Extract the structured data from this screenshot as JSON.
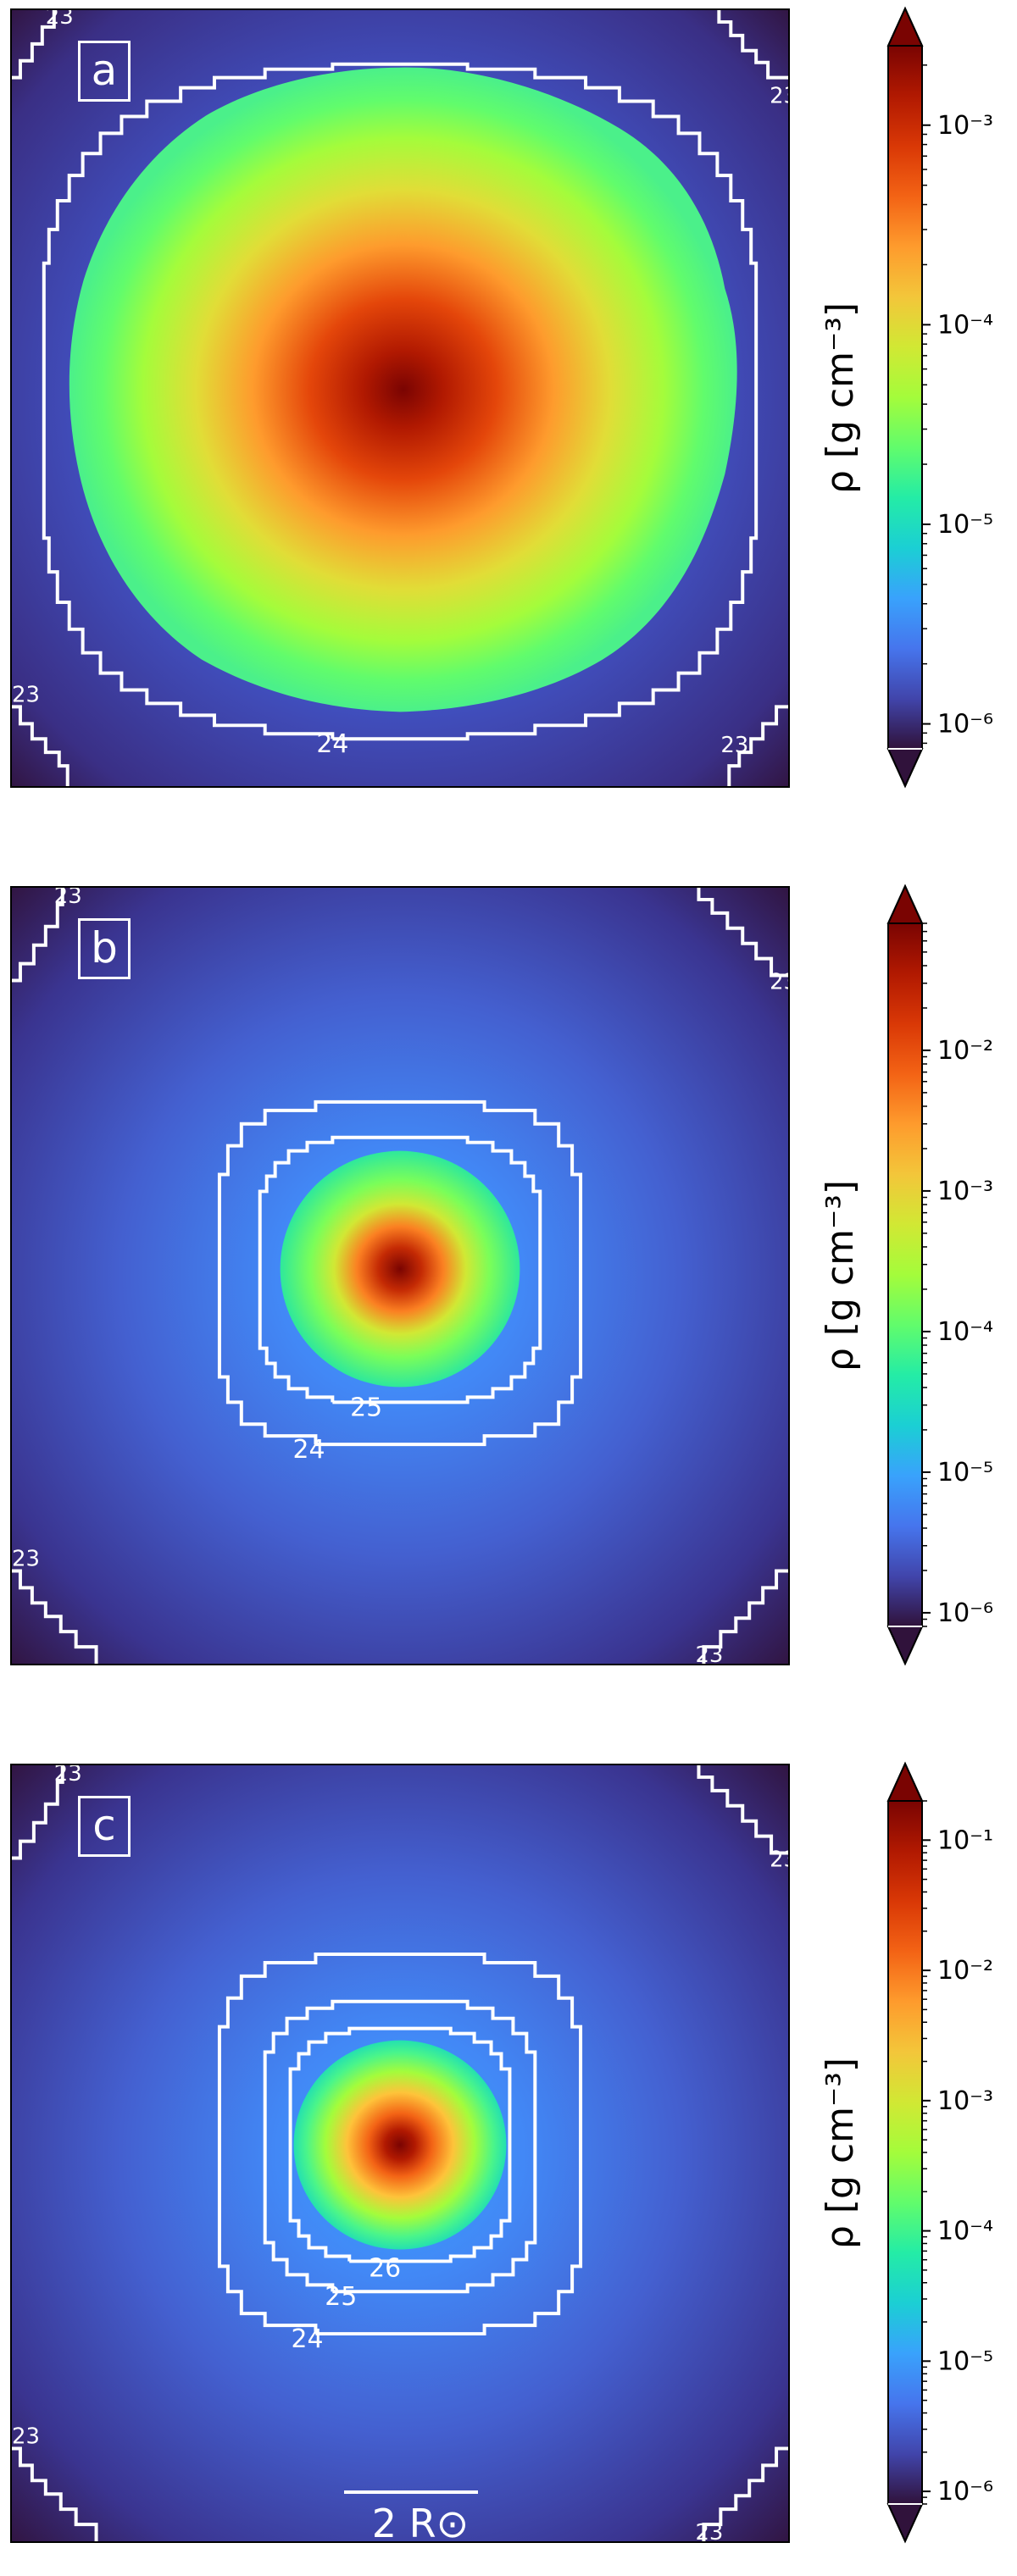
{
  "chart_data": [
    {
      "type": "heatmap",
      "panel_label": "a",
      "quantity": "density",
      "colorbar": {
        "label": "ρ [g cm⁻³]",
        "scale": "log",
        "range": [
          7.5e-07,
          0.0025
        ],
        "ticks": [
          {
            "value": 1e-06,
            "label": "10⁻⁶"
          },
          {
            "value": 1e-05,
            "label": "10⁻⁵"
          },
          {
            "value": 0.0001,
            "label": "10⁻⁴"
          },
          {
            "value": 0.001,
            "label": "10⁻³"
          }
        ],
        "extend": "both"
      },
      "contour_labels": [
        "24",
        "23",
        "23",
        "23",
        "23"
      ],
      "max_density": 0.0025
    },
    {
      "type": "heatmap",
      "panel_label": "b",
      "quantity": "density",
      "colorbar": {
        "label": "ρ [g cm⁻³]",
        "scale": "log",
        "range": [
          8e-07,
          0.08
        ],
        "ticks": [
          {
            "value": 1e-06,
            "label": "10⁻⁶"
          },
          {
            "value": 1e-05,
            "label": "10⁻⁵"
          },
          {
            "value": 0.0001,
            "label": "10⁻⁴"
          },
          {
            "value": 0.001,
            "label": "10⁻³"
          },
          {
            "value": 0.01,
            "label": "10⁻²"
          }
        ],
        "extend": "both"
      },
      "contour_labels": [
        "25",
        "24",
        "23",
        "23",
        "23",
        "23"
      ],
      "max_density": 0.08
    },
    {
      "type": "heatmap",
      "panel_label": "c",
      "quantity": "density",
      "colorbar": {
        "label": "ρ [g cm⁻³]",
        "scale": "log",
        "range": [
          8e-07,
          0.2
        ],
        "ticks": [
          {
            "value": 1e-06,
            "label": "10⁻⁶"
          },
          {
            "value": 1e-05,
            "label": "10⁻⁵"
          },
          {
            "value": 0.0001,
            "label": "10⁻⁴"
          },
          {
            "value": 0.001,
            "label": "10⁻³"
          },
          {
            "value": 0.01,
            "label": "10⁻²"
          },
          {
            "value": 0.1,
            "label": "10⁻¹"
          }
        ],
        "extend": "both"
      },
      "contour_labels": [
        "26",
        "25",
        "24",
        "23",
        "23",
        "23",
        "23"
      ],
      "scale_bar_label": "2 R⊙",
      "max_density": 0.2
    }
  ],
  "colors": {
    "cmap": [
      "#30123b",
      "#4145ab",
      "#4675ed",
      "#39a2fc",
      "#1bcfd4",
      "#24eca6",
      "#61fc6c",
      "#a4fc3b",
      "#d1e834",
      "#f3c63a",
      "#fe9b2d",
      "#f36315",
      "#d93806",
      "#b11901",
      "#7a0402"
    ],
    "contour": "#ffffff"
  }
}
